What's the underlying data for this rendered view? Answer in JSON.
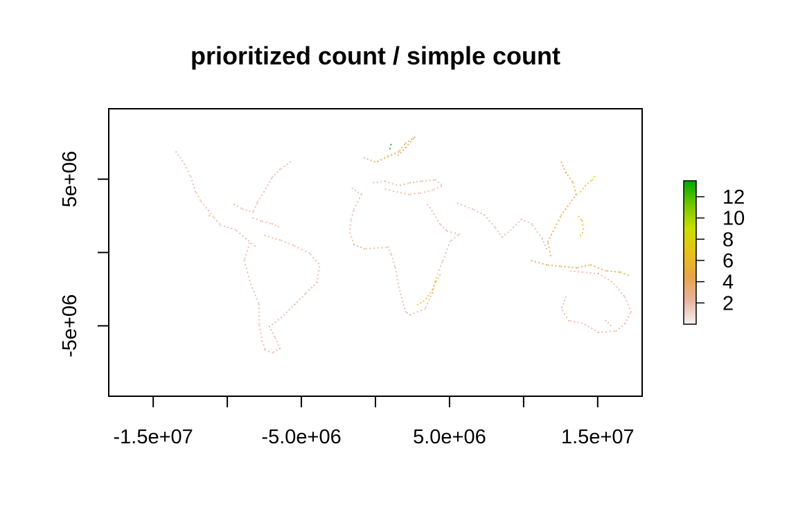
{
  "chart_data": {
    "type": "heatmap",
    "title": "prioritized count / simple count",
    "xlabel": "",
    "ylabel": "",
    "xlim": [
      -18000000.0,
      18000000.0
    ],
    "ylim": [
      -9800000.0,
      9800000.0
    ],
    "x_ticks": [
      {
        "value": -15000000.0,
        "label": "-1.5e+07"
      },
      {
        "value": -10000000.0,
        "label": ""
      },
      {
        "value": -5000000.0,
        "label": "-5.0e+06"
      },
      {
        "value": 0,
        "label": ""
      },
      {
        "value": 5000000.0,
        "label": "5.0e+06"
      },
      {
        "value": 10000000.0,
        "label": ""
      },
      {
        "value": 15000000.0,
        "label": "1.5e+07"
      }
    ],
    "y_ticks": [
      {
        "value": 5000000.0,
        "label": "5e+06"
      },
      {
        "value": 0,
        "label": ""
      },
      {
        "value": -5000000.0,
        "label": "-5e+06"
      }
    ],
    "legend": {
      "placement": "right",
      "min": 0,
      "max": 13.5,
      "ticks": [
        {
          "value": 2,
          "label": "2"
        },
        {
          "value": 4,
          "label": "4"
        },
        {
          "value": 6,
          "label": "6"
        },
        {
          "value": 8,
          "label": "8"
        },
        {
          "value": 10,
          "label": "10"
        },
        {
          "value": 12,
          "label": "12"
        }
      ],
      "colors": [
        "#f2f2f2",
        "#e8b39c",
        "#e6a54a",
        "#e8c21a",
        "#c9de00",
        "#74c600",
        "#00a600"
      ]
    },
    "grid": false,
    "coast_segments": [
      {
        "value": 2,
        "points": [
          [
            -13500000.0,
            6900000.0
          ],
          [
            -13000000.0,
            6200000.0
          ],
          [
            -12500000.0,
            5200000.0
          ],
          [
            -12200000.0,
            4200000.0
          ],
          [
            -11800000.0,
            3500000.0
          ],
          [
            -11000000.0,
            2500000.0
          ],
          [
            -10500000.0,
            1900000.0
          ],
          [
            -9500000.0,
            1600000.0
          ],
          [
            -8800000.0,
            1000000.0
          ],
          [
            -8200000.0,
            500000.0
          ]
        ]
      },
      {
        "value": 2,
        "points": [
          [
            -9700000.0,
            3400000.0
          ],
          [
            -9000000.0,
            3000000.0
          ],
          [
            -8300000.0,
            2800000.0
          ],
          [
            -8000000.0,
            3500000.0
          ],
          [
            -7500000.0,
            4300000.0
          ],
          [
            -7000000.0,
            5200000.0
          ],
          [
            -6500000.0,
            5700000.0
          ],
          [
            -5700000.0,
            6300000.0
          ]
        ]
      },
      {
        "value": 3,
        "points": [
          [
            -8300000.0,
            2400000.0
          ],
          [
            -7800000.0,
            2200000.0
          ],
          [
            -7000000.0,
            2000000.0
          ],
          [
            -6600000.0,
            1800000.0
          ]
        ]
      },
      {
        "value": 2,
        "points": [
          [
            -8500000.0,
            800000.0
          ],
          [
            -8900000.0,
            -500000.0
          ],
          [
            -8500000.0,
            -2000000.0
          ],
          [
            -7900000.0,
            -3500000.0
          ],
          [
            -7900000.0,
            -4800000.0
          ],
          [
            -7700000.0,
            -6000000.0
          ],
          [
            -7500000.0,
            -6500000.0
          ]
        ]
      },
      {
        "value": 3,
        "points": [
          [
            -7500000.0,
            -6600000.0
          ],
          [
            -7000000.0,
            -6800000.0
          ],
          [
            -6500000.0,
            -6500000.0
          ],
          [
            -6800000.0,
            -5800000.0
          ],
          [
            -7200000.0,
            -5000000.0
          ],
          [
            -6300000.0,
            -4300000.0
          ],
          [
            -5500000.0,
            -3500000.0
          ],
          [
            -4800000.0,
            -2800000.0
          ],
          [
            -4000000.0,
            -2000000.0
          ],
          [
            -3800000.0,
            -800000.0
          ],
          [
            -4500000.0,
            0
          ],
          [
            -5500000.0,
            500000.0
          ],
          [
            -6500000.0,
            900000.0
          ],
          [
            -7500000.0,
            1200000.0
          ]
        ]
      },
      {
        "value": 2,
        "points": [
          [
            -1700000.0,
            4500000.0
          ],
          [
            -1000000.0,
            4000000.0
          ],
          [
            -1500000.0,
            3000000.0
          ],
          [
            -1700000.0,
            2200000.0
          ],
          [
            -1800000.0,
            1500000.0
          ],
          [
            -1500000.0,
            600000.0
          ],
          [
            -800000.0,
            300000.0
          ],
          [
            800000.0,
            400000.0
          ],
          [
            1000000.0,
            0
          ],
          [
            1300000.0,
            -1000000.0
          ],
          [
            1500000.0,
            -2200000.0
          ],
          [
            1800000.0,
            -3300000.0
          ],
          [
            2000000.0,
            -4000000.0
          ],
          [
            2300000.0,
            -4200000.0
          ],
          [
            3300000.0,
            -3800000.0
          ],
          [
            3800000.0,
            -2700000.0
          ],
          [
            4000000.0,
            -1800000.0
          ],
          [
            4500000.0,
            -500000.0
          ],
          [
            5000000.0,
            800000.0
          ],
          [
            5600000.0,
            1300000.0
          ],
          [
            4800000.0,
            1500000.0
          ],
          [
            4300000.0,
            2000000.0
          ],
          [
            3700000.0,
            3000000.0
          ],
          [
            3400000.0,
            3400000.0
          ]
        ]
      },
      {
        "value": 6,
        "points": [
          [
            2800000.0,
            -3500000.0
          ],
          [
            3300000.0,
            -3200000.0
          ],
          [
            3800000.0,
            -2500000.0
          ],
          [
            4000000.0,
            -2000000.0
          ],
          [
            4300000.0,
            -1500000.0
          ]
        ]
      },
      {
        "value": 3,
        "points": [
          [
            -300000.0,
            4800000.0
          ],
          [
            600000.0,
            4900000.0
          ],
          [
            1500000.0,
            4600000.0
          ],
          [
            2300000.0,
            4800000.0
          ],
          [
            3000000.0,
            4900000.0
          ],
          [
            4000000.0,
            5000000.0
          ],
          [
            4500000.0,
            4600000.0
          ],
          [
            3800000.0,
            4300000.0
          ],
          [
            3000000.0,
            4100000.0
          ],
          [
            2200000.0,
            4000000.0
          ],
          [
            1300000.0,
            4200000.0
          ],
          [
            500000.0,
            4400000.0
          ]
        ]
      },
      {
        "value": 4,
        "points": [
          [
            -800000.0,
            6500000.0
          ],
          [
            0,
            6200000.0
          ],
          [
            800000.0,
            6600000.0
          ],
          [
            1500000.0,
            6900000.0
          ],
          [
            2000000.0,
            7500000.0
          ],
          [
            2600000.0,
            7900000.0
          ],
          [
            2000000.0,
            7200000.0
          ],
          [
            1400000.0,
            6600000.0
          ]
        ]
      },
      {
        "value": 13,
        "points": [
          [
            900000.0,
            7000000.0
          ],
          [
            1000000.0,
            7400000.0
          ]
        ]
      },
      {
        "value": 2,
        "points": [
          [
            5500000.0,
            3400000.0
          ],
          [
            6500000.0,
            3000000.0
          ],
          [
            7300000.0,
            2600000.0
          ],
          [
            8000000.0,
            1800000.0
          ],
          [
            8500000.0,
            1100000.0
          ],
          [
            9000000.0,
            1500000.0
          ],
          [
            9800000.0,
            2300000.0
          ],
          [
            10500000.0,
            2000000.0
          ],
          [
            11200000.0,
            1000000.0
          ],
          [
            11500000.0,
            300000.0
          ]
        ]
      },
      {
        "value": 5,
        "points": [
          [
            11800000.0,
            -300000.0
          ],
          [
            11600000.0,
            800000.0
          ],
          [
            12000000.0,
            1600000.0
          ],
          [
            12500000.0,
            2600000.0
          ],
          [
            13000000.0,
            3300000.0
          ],
          [
            13500000.0,
            4000000.0
          ],
          [
            13300000.0,
            4800000.0
          ],
          [
            12800000.0,
            5500000.0
          ],
          [
            12500000.0,
            6200000.0
          ]
        ]
      },
      {
        "value": 7,
        "points": [
          [
            13800000.0,
            4200000.0
          ],
          [
            14200000.0,
            4700000.0
          ],
          [
            14600000.0,
            5000000.0
          ],
          [
            14800000.0,
            5300000.0
          ]
        ]
      },
      {
        "value": 6,
        "points": [
          [
            13600000.0,
            2600000.0
          ],
          [
            13900000.0,
            2200000.0
          ],
          [
            14000000.0,
            1500000.0
          ],
          [
            13800000.0,
            1200000.0
          ]
        ]
      },
      {
        "value": 4,
        "points": [
          [
            10500000.0,
            -500000.0
          ],
          [
            11500000.0,
            -800000.0
          ],
          [
            12500000.0,
            -900000.0
          ],
          [
            13500000.0,
            -1000000.0
          ],
          [
            14500000.0,
            -800000.0
          ],
          [
            15500000.0,
            -1200000.0
          ],
          [
            16500000.0,
            -1300000.0
          ],
          [
            17000000.0,
            -1500000.0
          ]
        ]
      },
      {
        "value": 2,
        "points": [
          [
            13000000.0,
            -1200000.0
          ],
          [
            15000000.0,
            -1400000.0
          ],
          [
            16000000.0,
            -2000000.0
          ],
          [
            16800000.0,
            -3000000.0
          ],
          [
            17200000.0,
            -4000000.0
          ],
          [
            16800000.0,
            -4800000.0
          ],
          [
            16200000.0,
            -5300000.0
          ],
          [
            15000000.0,
            -5400000.0
          ],
          [
            14000000.0,
            -4800000.0
          ],
          [
            13000000.0,
            -4600000.0
          ],
          [
            12500000.0,
            -3800000.0
          ],
          [
            12800000.0,
            -3000000.0
          ]
        ]
      },
      {
        "value": 3,
        "points": [
          [
            15500000.0,
            -4600000.0
          ],
          [
            15900000.0,
            -5000000.0
          ]
        ]
      },
      {
        "value": 5,
        "points": [
          [
            -11300000.0,
            2600000.0
          ],
          [
            -11200000.0,
            2500000.0
          ]
        ]
      }
    ]
  }
}
